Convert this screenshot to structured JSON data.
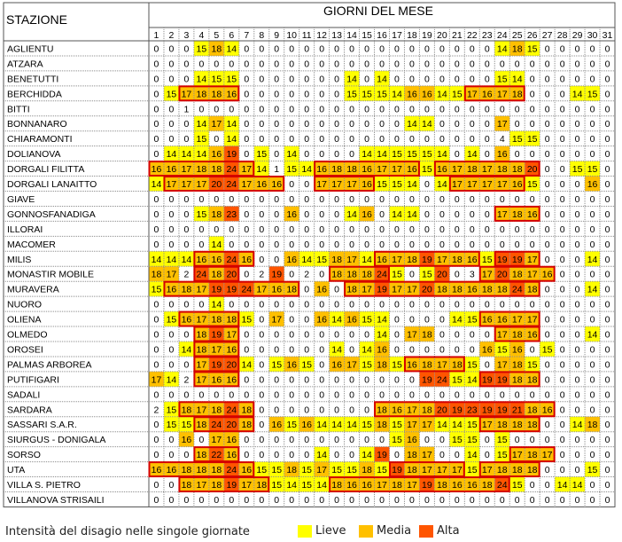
{
  "header": {
    "station_label": "STAZIONE",
    "days_label": "GIORNI DEL MESE"
  },
  "legend": {
    "title": "Intensità del disagio nelle singole giornate",
    "items": [
      {
        "label": "Lieve",
        "color": "#ffff00"
      },
      {
        "label": "Media",
        "color": "#ffc000"
      },
      {
        "label": "Alta",
        "color": "#ff5500"
      }
    ],
    "box_border_color": "#d40000"
  },
  "chart_data": {
    "type": "table",
    "days": [
      1,
      2,
      3,
      4,
      5,
      6,
      7,
      8,
      9,
      10,
      11,
      12,
      13,
      14,
      15,
      16,
      17,
      18,
      19,
      20,
      21,
      22,
      23,
      24,
      25,
      26,
      27,
      28,
      29,
      30,
      31
    ],
    "stations": [
      {
        "name": "AGLIENTU",
        "values": [
          0,
          0,
          0,
          15,
          18,
          14,
          0,
          0,
          0,
          0,
          0,
          0,
          0,
          0,
          0,
          0,
          0,
          0,
          0,
          0,
          0,
          0,
          0,
          14,
          18,
          15,
          0,
          0,
          0,
          0,
          0
        ]
      },
      {
        "name": "ATZARA",
        "values": [
          0,
          0,
          0,
          0,
          0,
          0,
          0,
          0,
          0,
          0,
          0,
          0,
          0,
          0,
          0,
          0,
          0,
          0,
          0,
          0,
          0,
          0,
          0,
          0,
          0,
          0,
          0,
          0,
          0,
          0,
          0
        ]
      },
      {
        "name": "BENETUTTI",
        "values": [
          0,
          0,
          0,
          14,
          15,
          15,
          0,
          0,
          0,
          0,
          0,
          0,
          0,
          14,
          0,
          14,
          0,
          0,
          0,
          0,
          0,
          0,
          0,
          15,
          14,
          0,
          0,
          0,
          0,
          0,
          0
        ]
      },
      {
        "name": "BERCHIDDA",
        "values": [
          0,
          15,
          17,
          18,
          18,
          16,
          0,
          0,
          0,
          0,
          0,
          0,
          0,
          15,
          15,
          15,
          14,
          16,
          16,
          14,
          15,
          17,
          16,
          17,
          18,
          0,
          0,
          0,
          14,
          15,
          0
        ]
      },
      {
        "name": "BITTI",
        "values": [
          0,
          0,
          1,
          0,
          0,
          0,
          0,
          0,
          0,
          0,
          0,
          0,
          0,
          0,
          0,
          0,
          0,
          0,
          0,
          0,
          0,
          0,
          0,
          0,
          0,
          0,
          0,
          0,
          0,
          0,
          0
        ]
      },
      {
        "name": "BONNANARO",
        "values": [
          0,
          0,
          0,
          14,
          17,
          14,
          0,
          0,
          0,
          0,
          0,
          0,
          0,
          0,
          0,
          0,
          0,
          14,
          14,
          0,
          0,
          0,
          0,
          17,
          0,
          0,
          0,
          0,
          0,
          0,
          0
        ]
      },
      {
        "name": "CHIARAMONTI",
        "values": [
          0,
          0,
          0,
          15,
          0,
          14,
          0,
          0,
          0,
          0,
          0,
          0,
          0,
          0,
          0,
          0,
          0,
          0,
          0,
          0,
          0,
          0,
          0,
          4,
          15,
          15,
          0,
          0,
          0,
          0,
          0
        ]
      },
      {
        "name": "DOLIANOVA",
        "values": [
          0,
          14,
          14,
          14,
          16,
          19,
          0,
          15,
          0,
          14,
          0,
          0,
          0,
          0,
          14,
          14,
          15,
          15,
          15,
          14,
          0,
          14,
          0,
          16,
          0,
          0,
          0,
          0,
          0,
          0,
          0
        ]
      },
      {
        "name": "DORGALI FILITTA",
        "values": [
          16,
          16,
          17,
          18,
          18,
          24,
          17,
          14,
          1,
          15,
          14,
          16,
          18,
          18,
          16,
          17,
          17,
          16,
          15,
          16,
          17,
          18,
          17,
          18,
          18,
          20,
          0,
          0,
          15,
          15,
          0
        ]
      },
      {
        "name": "DORGALI LANAITTO",
        "values": [
          14,
          17,
          17,
          17,
          20,
          24,
          17,
          16,
          16,
          0,
          0,
          17,
          17,
          17,
          16,
          15,
          15,
          14,
          0,
          14,
          17,
          17,
          17,
          17,
          16,
          15,
          0,
          0,
          0,
          16,
          0
        ]
      },
      {
        "name": "GIAVE",
        "values": [
          0,
          0,
          0,
          0,
          0,
          0,
          0,
          0,
          0,
          0,
          0,
          0,
          0,
          0,
          0,
          0,
          0,
          0,
          0,
          0,
          0,
          0,
          0,
          0,
          0,
          0,
          0,
          0,
          0,
          0,
          0
        ]
      },
      {
        "name": "GONNOSFANADIGA",
        "values": [
          0,
          0,
          0,
          15,
          18,
          23,
          0,
          0,
          0,
          16,
          0,
          0,
          0,
          14,
          16,
          0,
          14,
          14,
          0,
          0,
          0,
          0,
          0,
          17,
          18,
          16,
          0,
          0,
          0,
          0,
          0
        ]
      },
      {
        "name": "ILLORAI",
        "values": [
          0,
          0,
          0,
          0,
          0,
          0,
          0,
          0,
          0,
          0,
          0,
          0,
          0,
          0,
          0,
          0,
          0,
          0,
          0,
          0,
          0,
          0,
          0,
          0,
          0,
          0,
          0,
          0,
          0,
          0,
          0
        ]
      },
      {
        "name": "MACOMER",
        "values": [
          0,
          0,
          0,
          0,
          14,
          0,
          0,
          0,
          0,
          0,
          0,
          0,
          0,
          0,
          0,
          0,
          0,
          0,
          0,
          0,
          0,
          0,
          0,
          0,
          0,
          0,
          0,
          0,
          0,
          0,
          0
        ]
      },
      {
        "name": "MILIS",
        "values": [
          14,
          14,
          14,
          16,
          16,
          24,
          16,
          0,
          0,
          16,
          14,
          15,
          18,
          17,
          14,
          16,
          17,
          18,
          19,
          17,
          18,
          16,
          15,
          19,
          19,
          17,
          0,
          0,
          0,
          14,
          0
        ]
      },
      {
        "name": "MONASTIR MOBILE",
        "values": [
          18,
          17,
          2,
          24,
          18,
          20,
          0,
          2,
          19,
          0,
          2,
          0,
          18,
          18,
          18,
          24,
          15,
          0,
          15,
          20,
          0,
          3,
          17,
          20,
          18,
          17,
          16,
          0,
          0,
          0,
          0
        ]
      },
      {
        "name": "MURAVERA",
        "values": [
          15,
          16,
          18,
          17,
          19,
          19,
          24,
          17,
          16,
          18,
          0,
          16,
          0,
          18,
          17,
          19,
          17,
          17,
          20,
          18,
          18,
          16,
          18,
          18,
          24,
          18,
          0,
          0,
          0,
          14,
          0
        ]
      },
      {
        "name": "NUORO",
        "values": [
          0,
          0,
          0,
          0,
          14,
          0,
          0,
          0,
          0,
          0,
          0,
          0,
          0,
          0,
          0,
          0,
          0,
          0,
          0,
          0,
          0,
          0,
          0,
          0,
          0,
          0,
          0,
          0,
          0,
          0,
          0
        ]
      },
      {
        "name": "OLIENA",
        "values": [
          0,
          15,
          16,
          17,
          18,
          18,
          15,
          0,
          17,
          0,
          0,
          16,
          14,
          16,
          15,
          14,
          0,
          0,
          0,
          0,
          14,
          15,
          16,
          16,
          17,
          17,
          0,
          0,
          0,
          0,
          0
        ]
      },
      {
        "name": "OLMEDO",
        "values": [
          0,
          0,
          0,
          18,
          19,
          17,
          0,
          0,
          0,
          0,
          0,
          0,
          0,
          0,
          0,
          14,
          0,
          17,
          18,
          0,
          0,
          0,
          0,
          17,
          18,
          16,
          0,
          0,
          0,
          14,
          0
        ]
      },
      {
        "name": "OROSEI",
        "values": [
          0,
          0,
          14,
          18,
          17,
          16,
          0,
          0,
          0,
          0,
          0,
          0,
          14,
          0,
          14,
          16,
          0,
          0,
          0,
          0,
          0,
          0,
          16,
          15,
          16,
          0,
          15,
          0,
          0,
          0,
          0
        ]
      },
      {
        "name": "PALMAS ARBOREA",
        "values": [
          0,
          0,
          0,
          17,
          19,
          20,
          14,
          0,
          15,
          16,
          15,
          0,
          16,
          17,
          15,
          18,
          15,
          16,
          18,
          17,
          18,
          15,
          0,
          17,
          18,
          15,
          0,
          0,
          0,
          0,
          0
        ]
      },
      {
        "name": "PUTIFIGARI",
        "values": [
          17,
          14,
          2,
          17,
          16,
          16,
          0,
          0,
          0,
          0,
          0,
          0,
          0,
          0,
          0,
          0,
          0,
          0,
          19,
          24,
          15,
          14,
          19,
          19,
          18,
          18,
          0,
          0,
          0,
          0,
          0
        ]
      },
      {
        "name": "SADALI",
        "values": [
          0,
          0,
          0,
          0,
          0,
          0,
          0,
          0,
          0,
          0,
          0,
          0,
          0,
          0,
          0,
          0,
          0,
          0,
          0,
          0,
          0,
          0,
          0,
          0,
          0,
          0,
          0,
          0,
          0,
          0,
          0
        ]
      },
      {
        "name": "SARDARA",
        "values": [
          2,
          15,
          18,
          17,
          18,
          24,
          18,
          0,
          0,
          0,
          0,
          0,
          0,
          0,
          0,
          18,
          16,
          17,
          18,
          20,
          19,
          23,
          19,
          19,
          21,
          18,
          16,
          0,
          0,
          0,
          0
        ]
      },
      {
        "name": "SASSARI S.A.R.",
        "values": [
          0,
          15,
          15,
          18,
          24,
          20,
          18,
          0,
          16,
          15,
          16,
          14,
          14,
          14,
          15,
          18,
          15,
          17,
          17,
          14,
          14,
          15,
          17,
          18,
          18,
          18,
          0,
          0,
          14,
          18,
          0
        ]
      },
      {
        "name": "SIURGUS - DONIGALA",
        "values": [
          0,
          0,
          16,
          0,
          17,
          16,
          0,
          0,
          0,
          0,
          0,
          0,
          0,
          0,
          0,
          0,
          15,
          16,
          0,
          0,
          15,
          15,
          0,
          15,
          0,
          0,
          0,
          0,
          0,
          0,
          0
        ]
      },
      {
        "name": "SORSO",
        "values": [
          0,
          0,
          0,
          18,
          22,
          16,
          0,
          0,
          0,
          0,
          0,
          14,
          0,
          0,
          14,
          19,
          0,
          18,
          17,
          0,
          0,
          14,
          0,
          15,
          17,
          18,
          17,
          0,
          0,
          0,
          0
        ]
      },
      {
        "name": "UTA",
        "values": [
          16,
          16,
          18,
          18,
          18,
          24,
          16,
          15,
          15,
          18,
          15,
          17,
          15,
          15,
          18,
          15,
          19,
          18,
          17,
          17,
          17,
          15,
          17,
          18,
          18,
          18,
          0,
          0,
          0,
          15,
          0
        ]
      },
      {
        "name": "VILLA S. PIETRO",
        "values": [
          0,
          0,
          18,
          17,
          18,
          19,
          17,
          18,
          15,
          14,
          15,
          14,
          18,
          16,
          16,
          17,
          18,
          17,
          19,
          18,
          16,
          16,
          18,
          24,
          15,
          0,
          0,
          14,
          14,
          0,
          0
        ]
      },
      {
        "name": "VILLANOVA STRISAILI",
        "values": [
          0,
          0,
          0,
          0,
          0,
          0,
          0,
          0,
          0,
          0,
          0,
          0,
          0,
          0,
          0,
          0,
          0,
          0,
          0,
          0,
          0,
          0,
          0,
          0,
          0,
          0,
          0,
          0,
          0,
          0,
          0
        ]
      }
    ]
  }
}
